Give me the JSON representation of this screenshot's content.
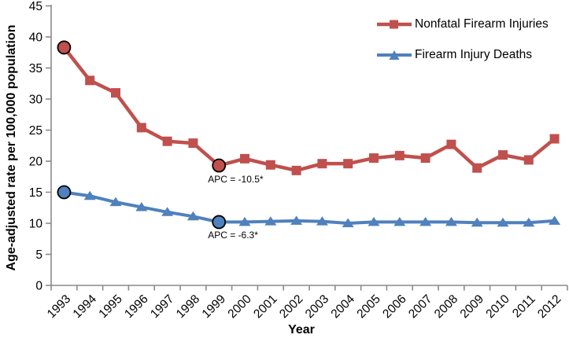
{
  "chart_data": {
    "type": "line",
    "title": "",
    "xlabel": "Year",
    "ylabel": "Age-adjusted rate per 100,000 population",
    "ylim": [
      0,
      45
    ],
    "yticks": [
      0,
      5,
      10,
      15,
      20,
      25,
      30,
      35,
      40,
      45
    ],
    "x": [
      1993,
      1994,
      1995,
      1996,
      1997,
      1998,
      1999,
      2000,
      2001,
      2002,
      2003,
      2004,
      2005,
      2006,
      2007,
      2008,
      2009,
      2010,
      2011,
      2012
    ],
    "series": [
      {
        "name": "Nonfatal Firearm Injuries",
        "color": "#c0504d",
        "marker": "square",
        "values": [
          38.3,
          33.0,
          31.0,
          25.4,
          23.2,
          22.9,
          19.3,
          20.4,
          19.4,
          18.5,
          19.6,
          19.6,
          20.5,
          20.9,
          20.5,
          22.7,
          18.9,
          21.0,
          20.2,
          23.6
        ],
        "highlighted_years": [
          1993,
          1999
        ],
        "annotation": {
          "text": "APC = -10.5*",
          "year": 1999
        }
      },
      {
        "name": "Firearm Injury Deaths",
        "color": "#4f81bd",
        "marker": "triangle",
        "values": [
          15.0,
          14.4,
          13.4,
          12.6,
          11.8,
          11.1,
          10.2,
          10.2,
          10.3,
          10.4,
          10.3,
          10.0,
          10.2,
          10.2,
          10.2,
          10.2,
          10.1,
          10.1,
          10.1,
          10.4
        ],
        "highlighted_years": [
          1993,
          1999
        ],
        "annotation": {
          "text": "APC = -6.3*",
          "year": 1999
        }
      }
    ],
    "legend_position": "top-right",
    "grid": false,
    "highlight_outline_color": "#000000",
    "axis_color": "#8a8a8a",
    "text_color": "#000000"
  }
}
